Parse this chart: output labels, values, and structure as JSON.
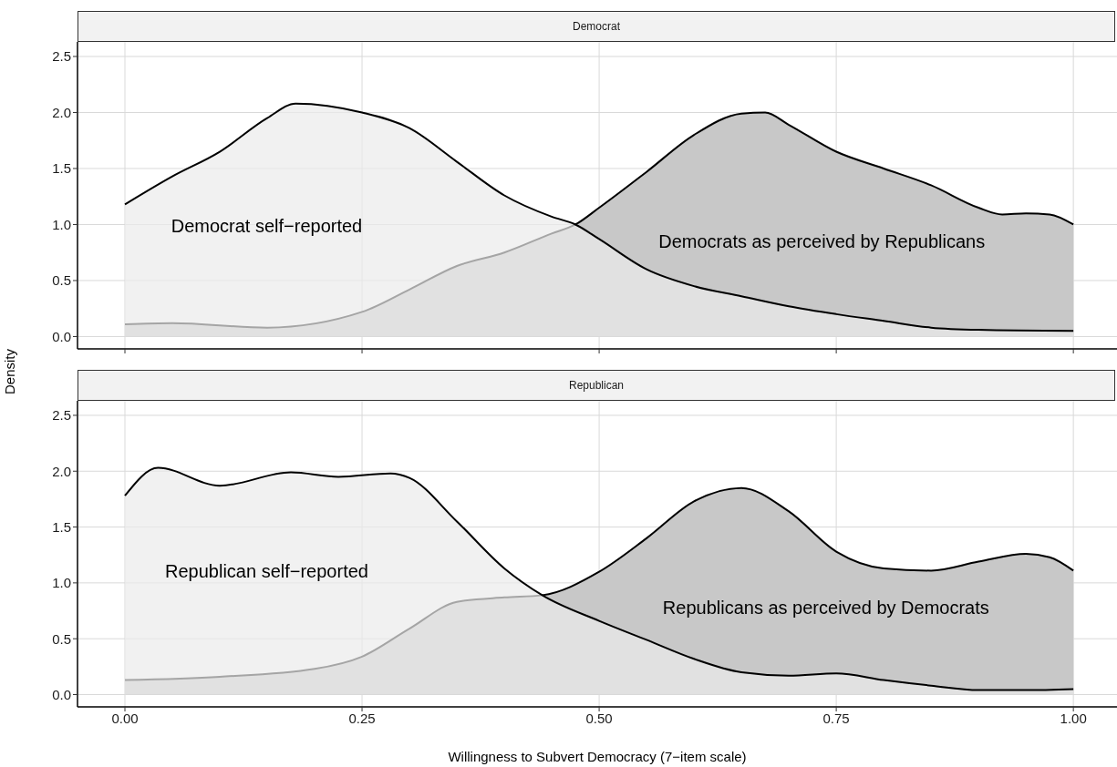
{
  "chart_data": [
    {
      "type": "area",
      "title": "Democrat",
      "ylabel": "Density",
      "xlim": [
        -0.05,
        1.046
      ],
      "ylim": [
        -0.11,
        2.63
      ],
      "xticks": [
        0,
        0.25,
        0.5,
        0.75,
        1
      ],
      "yticks": [
        {
          "value": 0,
          "label": "0.0"
        },
        {
          "value": 0.5,
          "label": "0.5"
        },
        {
          "value": 1,
          "label": "1.0"
        },
        {
          "value": 1.5,
          "label": "1.5"
        },
        {
          "value": 2,
          "label": "2.0"
        },
        {
          "value": 2.5,
          "label": "2.5"
        }
      ],
      "tick_labels": "y",
      "grid": true,
      "legend": false,
      "series": [
        {
          "name": "Democrats as perceived by Republicans",
          "color": "#c8c8c8",
          "x": [
            0,
            0.05,
            0.15,
            0.25,
            0.3,
            0.35,
            0.4,
            0.45,
            0.475,
            0.5,
            0.55,
            0.6,
            0.65,
            0.675,
            0.7,
            0.75,
            0.8,
            0.85,
            0.9,
            0.925,
            0.95,
            0.975,
            1
          ],
          "values": [
            0.11,
            0.12,
            0.08,
            0.22,
            0.42,
            0.63,
            0.75,
            0.92,
            1.0,
            1.15,
            1.47,
            1.8,
            1.99,
            2.0,
            1.89,
            1.65,
            1.5,
            1.35,
            1.15,
            1.09,
            1.1,
            1.09,
            1.0
          ]
        },
        {
          "name": "Democrat self−reported",
          "color": "#ebebeb",
          "x": [
            0,
            0.05,
            0.1,
            0.15,
            0.18,
            0.25,
            0.3,
            0.35,
            0.4,
            0.45,
            0.475,
            0.5,
            0.55,
            0.6,
            0.65,
            0.7,
            0.75,
            0.8,
            0.85,
            0.9,
            1
          ],
          "values": [
            1.18,
            1.43,
            1.65,
            1.95,
            2.08,
            2.0,
            1.86,
            1.56,
            1.26,
            1.07,
            1.0,
            0.87,
            0.6,
            0.45,
            0.36,
            0.27,
            0.2,
            0.14,
            0.08,
            0.06,
            0.05
          ]
        }
      ]
    },
    {
      "type": "area",
      "title": "Republican",
      "xlabel": "Willingness to Subvert Democracy (7−item scale)",
      "xlim": [
        -0.05,
        1.046
      ],
      "ylim": [
        -0.11,
        2.63
      ],
      "xticks": [
        {
          "value": 0,
          "label": "0.00"
        },
        {
          "value": 0.25,
          "label": "0.25"
        },
        {
          "value": 0.5,
          "label": "0.50"
        },
        {
          "value": 0.75,
          "label": "0.75"
        },
        {
          "value": 1,
          "label": "1.00"
        }
      ],
      "yticks": [
        {
          "value": 0,
          "label": "0.0"
        },
        {
          "value": 0.5,
          "label": "0.5"
        },
        {
          "value": 1,
          "label": "1.0"
        },
        {
          "value": 1.5,
          "label": "1.5"
        },
        {
          "value": 2,
          "label": "2.0"
        },
        {
          "value": 2.5,
          "label": "2.5"
        }
      ],
      "grid": true,
      "legend": false,
      "series": [
        {
          "name": "Republicans as perceived by Democrats",
          "color": "#c8c8c8",
          "x": [
            0,
            0.1,
            0.2,
            0.25,
            0.3,
            0.35,
            0.4,
            0.44,
            0.5,
            0.55,
            0.6,
            0.65,
            0.7,
            0.75,
            0.8,
            0.85,
            0.9,
            0.95,
            0.975,
            1
          ],
          "values": [
            0.13,
            0.16,
            0.23,
            0.34,
            0.59,
            0.83,
            0.87,
            0.89,
            1.1,
            1.4,
            1.73,
            1.85,
            1.64,
            1.28,
            1.13,
            1.11,
            1.19,
            1.26,
            1.23,
            1.11
          ]
        },
        {
          "name": "Republican self−reported",
          "color": "#ebebeb",
          "x": [
            0,
            0.035,
            0.1,
            0.175,
            0.225,
            0.28,
            0.3,
            0.35,
            0.4,
            0.44,
            0.5,
            0.55,
            0.6,
            0.65,
            0.7,
            0.75,
            0.8,
            0.85,
            0.9,
            0.95,
            1
          ],
          "values": [
            1.78,
            2.03,
            1.87,
            1.99,
            1.95,
            1.98,
            1.94,
            1.55,
            1.13,
            0.89,
            0.66,
            0.49,
            0.32,
            0.2,
            0.17,
            0.19,
            0.13,
            0.08,
            0.04,
            0.04,
            0.05
          ]
        }
      ]
    }
  ]
}
